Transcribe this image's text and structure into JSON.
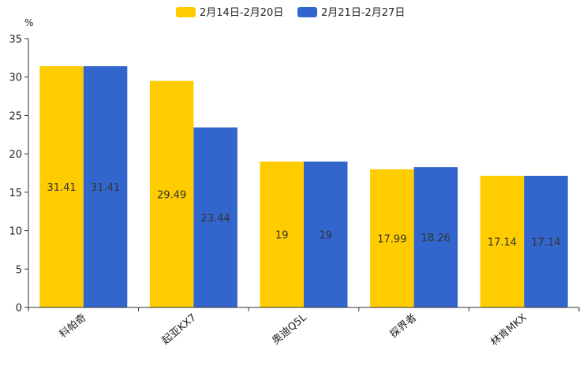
{
  "chart_data": {
    "type": "bar",
    "unit": "%",
    "categories": [
      "科帕奇",
      "起亚KX7",
      "奥迪Q5L",
      "探界者",
      "林肯MKX"
    ],
    "series": [
      {
        "name": "2月14日-2月20日",
        "color": "#FFCC00",
        "values": [
          31.41,
          29.49,
          19,
          17.99,
          17.14
        ]
      },
      {
        "name": "2月21日-2月27日",
        "color": "#3366CC",
        "values": [
          31.41,
          23.44,
          19,
          18.26,
          17.14
        ]
      }
    ],
    "ylim": [
      0,
      35
    ],
    "yticks": [
      0,
      5,
      10,
      15,
      20,
      25,
      30,
      35
    ],
    "legend_position": "top-center",
    "grid": false
  }
}
